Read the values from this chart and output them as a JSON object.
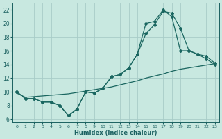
{
  "xlabel": "Humidex (Indice chaleur)",
  "bg_color": "#c8e8e0",
  "grid_color": "#a8ccc8",
  "line_color": "#1a6660",
  "xlim": [
    -0.5,
    23.5
  ],
  "ylim": [
    5.5,
    23.0
  ],
  "xticks": [
    0,
    1,
    2,
    3,
    4,
    5,
    6,
    7,
    8,
    9,
    10,
    11,
    12,
    13,
    14,
    15,
    16,
    17,
    18,
    19,
    20,
    21,
    22,
    23
  ],
  "yticks": [
    6,
    8,
    10,
    12,
    14,
    16,
    18,
    20,
    22
  ],
  "line1_x": [
    0,
    1,
    2,
    3,
    4,
    5,
    6,
    7,
    8,
    9,
    10,
    11,
    12,
    13,
    14,
    15,
    16,
    17,
    18,
    19,
    20,
    21,
    22,
    23
  ],
  "line1_y": [
    10,
    9,
    9,
    8.5,
    8.5,
    8.0,
    6.5,
    7.5,
    10,
    9.8,
    10.5,
    12.2,
    12.5,
    13.5,
    15.5,
    18.5,
    19.8,
    21.8,
    21.5,
    19.3,
    16.0,
    15.5,
    14.8,
    14.0
  ],
  "line2_x": [
    0,
    1,
    2,
    3,
    4,
    5,
    6,
    7,
    8,
    9,
    10,
    11,
    12,
    13,
    14,
    15,
    16,
    17,
    18,
    19,
    20,
    21,
    22,
    23
  ],
  "line2_y": [
    10,
    9,
    9,
    8.5,
    8.5,
    8.0,
    6.5,
    7.5,
    10,
    9.8,
    10.5,
    12.2,
    12.5,
    13.5,
    15.5,
    20.0,
    20.3,
    22.0,
    21.0,
    16.0,
    16.0,
    15.5,
    15.2,
    14.2
  ],
  "line3_x": [
    0,
    1,
    2,
    3,
    4,
    5,
    6,
    7,
    8,
    9,
    10,
    11,
    12,
    13,
    14,
    15,
    16,
    17,
    18,
    19,
    20,
    21,
    22,
    23
  ],
  "line3_y": [
    9.8,
    9.2,
    9.3,
    9.4,
    9.5,
    9.6,
    9.7,
    9.9,
    10.1,
    10.3,
    10.5,
    10.7,
    11.0,
    11.3,
    11.6,
    12.0,
    12.3,
    12.6,
    13.0,
    13.3,
    13.5,
    13.7,
    13.9,
    14.1
  ]
}
